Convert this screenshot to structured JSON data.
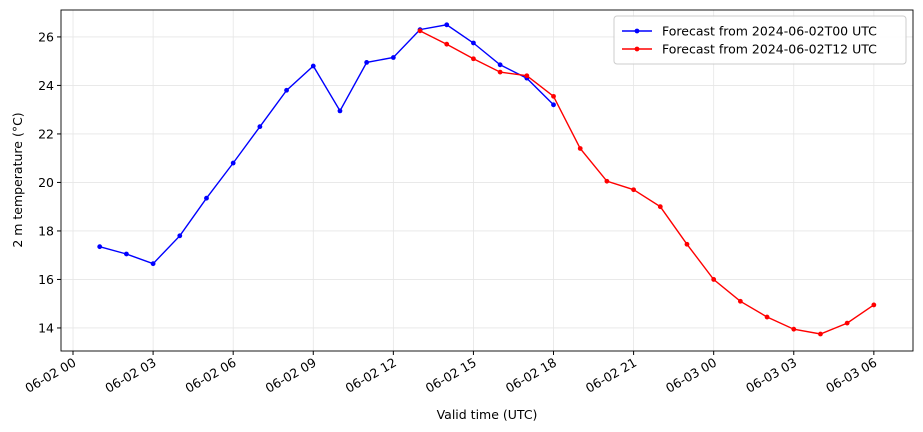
{
  "chart_data": {
    "type": "line",
    "xlabel": "Valid time (UTC)",
    "ylabel": "2 m temperature (°C)",
    "xlim": [
      "06-01 23:33",
      "06-03 07:28"
    ],
    "xticks": [
      "06-02 00",
      "06-02 03",
      "06-02 06",
      "06-02 09",
      "06-02 12",
      "06-02 15",
      "06-02 18",
      "06-02 21",
      "06-03 00",
      "06-03 03",
      "06-03 06"
    ],
    "ylim": [
      13.05,
      27.11
    ],
    "yticks": [
      14,
      16,
      18,
      20,
      22,
      24,
      26
    ],
    "grid": true,
    "legend": "upper right",
    "series": [
      {
        "name": "Forecast from 2024-06-02T00 UTC",
        "color": "#0000ff",
        "x": [
          "06-02 01",
          "06-02 02",
          "06-02 03",
          "06-02 04",
          "06-02 05",
          "06-02 06",
          "06-02 07",
          "06-02 08",
          "06-02 09",
          "06-02 10",
          "06-02 11",
          "06-02 12",
          "06-02 13",
          "06-02 14",
          "06-02 15",
          "06-02 16",
          "06-02 17",
          "06-02 18"
        ],
        "values": [
          17.35,
          17.05,
          16.65,
          17.8,
          19.35,
          20.8,
          22.3,
          23.8,
          24.8,
          22.95,
          24.95,
          25.15,
          26.3,
          26.5,
          25.75,
          24.85,
          24.3,
          23.2
        ]
      },
      {
        "name": "Forecast from 2024-06-02T12 UTC",
        "color": "#ff0000",
        "x": [
          "06-02 13",
          "06-02 14",
          "06-02 15",
          "06-02 16",
          "06-02 17",
          "06-02 18",
          "06-02 19",
          "06-02 20",
          "06-02 21",
          "06-02 22",
          "06-02 23",
          "06-03 00",
          "06-03 01",
          "06-03 02",
          "06-03 03",
          "06-03 04",
          "06-03 05",
          "06-03 06"
        ],
        "values": [
          26.25,
          25.7,
          25.1,
          24.55,
          24.4,
          23.55,
          21.4,
          20.05,
          19.7,
          19.0,
          17.45,
          16.0,
          15.1,
          14.45,
          13.95,
          13.75,
          14.2,
          14.95
        ]
      }
    ]
  }
}
